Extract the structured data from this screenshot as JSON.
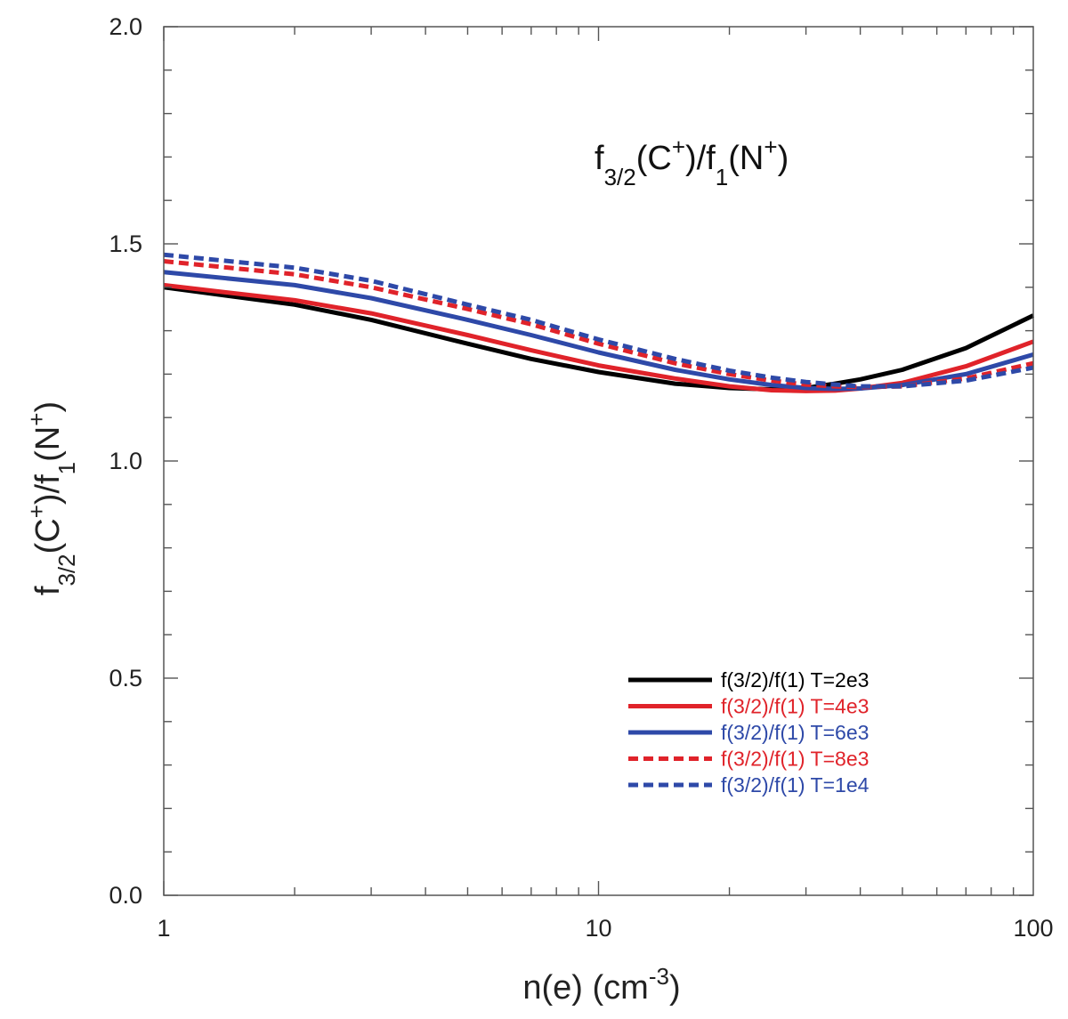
{
  "chart_data": {
    "type": "line",
    "x_scale": "log",
    "xlim": [
      1,
      100
    ],
    "ylim": [
      0.0,
      2.0
    ],
    "grid": false,
    "legend_position": "bottom-right",
    "xlabel": {
      "main": "n(e) (cm",
      "sup": "-3",
      "close": ")"
    },
    "ylabel": {
      "f": "f",
      "sub1": "3/2",
      "mid": "(C",
      "sup1": "+",
      "slash": ")/f",
      "sub2": "1",
      "n": "(N",
      "sup2": "+",
      "close": ")"
    },
    "annotation": {
      "f": "f",
      "sub1": "3/2",
      "mid": "(C",
      "sup1": "+",
      "slash": ")/f",
      "sub2": "1",
      "n": "(N",
      "sup2": "+",
      "close": ")"
    },
    "x_ticks": [
      {
        "value": 1,
        "label": "1"
      },
      {
        "value": 10,
        "label": "10"
      },
      {
        "value": 100,
        "label": "100"
      }
    ],
    "y_ticks": [
      {
        "value": 0.0,
        "label": "0.0"
      },
      {
        "value": 0.5,
        "label": "0.5"
      },
      {
        "value": 1.0,
        "label": "1.0"
      },
      {
        "value": 1.5,
        "label": "1.5"
      },
      {
        "value": 2.0,
        "label": "2.0"
      }
    ],
    "series": [
      {
        "name": "f(3/2)/f(1) T=2e3",
        "color": "#000000",
        "dash": "solid",
        "x": [
          1,
          2,
          3,
          5,
          7,
          10,
          15,
          20,
          25,
          30,
          35,
          40,
          50,
          70,
          100
        ],
        "y": [
          1.4,
          1.36,
          1.325,
          1.27,
          1.235,
          1.205,
          1.178,
          1.168,
          1.165,
          1.168,
          1.178,
          1.188,
          1.21,
          1.26,
          1.335
        ]
      },
      {
        "name": "f(3/2)/f(1) T=4e3",
        "color": "#e0232a",
        "dash": "solid",
        "x": [
          1,
          2,
          3,
          5,
          7,
          10,
          15,
          20,
          25,
          30,
          35,
          40,
          50,
          70,
          100
        ],
        "y": [
          1.405,
          1.37,
          1.34,
          1.29,
          1.255,
          1.22,
          1.19,
          1.172,
          1.163,
          1.161,
          1.162,
          1.167,
          1.18,
          1.218,
          1.275
        ]
      },
      {
        "name": "f(3/2)/f(1) T=6e3",
        "color": "#2e49a8",
        "dash": "solid",
        "x": [
          1,
          2,
          3,
          5,
          7,
          10,
          15,
          20,
          25,
          30,
          35,
          40,
          50,
          70,
          100
        ],
        "y": [
          1.435,
          1.405,
          1.375,
          1.325,
          1.29,
          1.25,
          1.21,
          1.188,
          1.175,
          1.168,
          1.166,
          1.167,
          1.175,
          1.2,
          1.245
        ]
      },
      {
        "name": "f(3/2)/f(1) T=8e3",
        "color": "#e0232a",
        "dash": "dashed",
        "x": [
          1,
          2,
          3,
          5,
          7,
          10,
          15,
          20,
          25,
          30,
          35,
          40,
          50,
          70,
          100
        ],
        "y": [
          1.46,
          1.43,
          1.4,
          1.35,
          1.315,
          1.27,
          1.225,
          1.2,
          1.185,
          1.176,
          1.172,
          1.17,
          1.172,
          1.19,
          1.225
        ]
      },
      {
        "name": "f(3/2)/f(1) T=1e4",
        "color": "#2e49a8",
        "dash": "dashed",
        "x": [
          1,
          2,
          3,
          5,
          7,
          10,
          15,
          20,
          25,
          30,
          35,
          40,
          50,
          70,
          100
        ],
        "y": [
          1.475,
          1.445,
          1.415,
          1.36,
          1.325,
          1.28,
          1.235,
          1.208,
          1.192,
          1.182,
          1.176,
          1.172,
          1.172,
          1.185,
          1.215
        ]
      }
    ]
  }
}
